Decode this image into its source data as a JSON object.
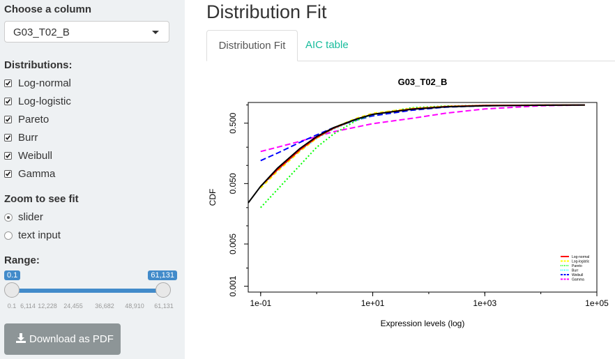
{
  "sidebar": {
    "column_label": "Choose a column",
    "column_value": "G03_T02_B",
    "distributions_label": "Distributions:",
    "distributions": [
      "Log-normal",
      "Log-logistic",
      "Pareto",
      "Burr",
      "Weibull",
      "Gamma"
    ],
    "zoom_label": "Zoom to see fit",
    "zoom_options": [
      "slider",
      "text input"
    ],
    "zoom_selected": "slider",
    "range_label": "Range:",
    "range_min_badge": "0.1",
    "range_max_badge": "61,131",
    "range_ticks": [
      "0.1",
      "6,114",
      "12,228",
      "24,455",
      "36,682",
      "48,910",
      "61,131"
    ],
    "download_label": "Download as PDF"
  },
  "main": {
    "title": "Distribution Fit",
    "tabs": [
      {
        "label": "Distribution Fit",
        "active": true
      },
      {
        "label": "AIC table",
        "active": false
      }
    ]
  },
  "colors": {
    "slider": "#428bca",
    "tab_link": "#18bc9c",
    "button": "#8d9597"
  },
  "chart_data": {
    "type": "line",
    "title": "G03_T02_B",
    "xlabel": "Expression levels (log)",
    "ylabel": "CDF",
    "x_scale": "log",
    "y_scale": "log",
    "xlim": [
      0.06,
      100000
    ],
    "ylim": [
      0.0008,
      1.1
    ],
    "x_ticks": [
      {
        "value": 0.1,
        "label": "1e-01"
      },
      {
        "value": 10,
        "label": "1e+01"
      },
      {
        "value": 1000,
        "label": "1e+03"
      },
      {
        "value": 100000,
        "label": "1e+05"
      }
    ],
    "y_ticks": [
      {
        "value": 0.001,
        "label": "0.001"
      },
      {
        "value": 0.005,
        "label": "0.005"
      },
      {
        "value": 0.05,
        "label": "0.050"
      },
      {
        "value": 0.5,
        "label": "0.500"
      }
    ],
    "legend_position": "bottom-right",
    "empirical": {
      "x": [
        0.06,
        0.1,
        0.2,
        0.5,
        1,
        2,
        5,
        10,
        50,
        200,
        1000,
        10000,
        61131
      ],
      "y": [
        0.024,
        0.045,
        0.09,
        0.19,
        0.3,
        0.42,
        0.58,
        0.7,
        0.85,
        0.93,
        0.97,
        0.99,
        1.0
      ]
    },
    "series": [
      {
        "name": "Log-normal",
        "color": "#ff0000",
        "dash": "",
        "x": [
          0.1,
          0.2,
          0.5,
          1,
          2,
          5,
          10,
          50,
          200,
          1000,
          10000,
          61131
        ],
        "y": [
          0.045,
          0.085,
          0.18,
          0.29,
          0.41,
          0.58,
          0.7,
          0.86,
          0.94,
          0.98,
          0.995,
          1.0
        ]
      },
      {
        "name": "Log-logistic",
        "color": "#ffff00",
        "dash": "5,4",
        "x": [
          0.1,
          0.2,
          0.5,
          1,
          2,
          5,
          10,
          50,
          200,
          1000,
          10000,
          61131
        ],
        "y": [
          0.042,
          0.08,
          0.17,
          0.28,
          0.42,
          0.6,
          0.73,
          0.88,
          0.95,
          0.98,
          0.995,
          1.0
        ]
      },
      {
        "name": "Pareto",
        "color": "#00ff00",
        "dash": "2,3",
        "x": [
          0.1,
          0.2,
          0.5,
          1,
          2,
          5,
          10,
          50,
          200,
          1000,
          10000,
          61131
        ],
        "y": [
          0.02,
          0.04,
          0.1,
          0.2,
          0.33,
          0.55,
          0.7,
          0.9,
          0.96,
          0.985,
          0.995,
          1.0
        ]
      },
      {
        "name": "Burr",
        "color": "#00ffff",
        "dash": "2,3",
        "x": [
          0.1,
          0.2,
          0.5,
          1,
          2,
          5,
          10,
          50,
          200,
          1000,
          10000,
          61131
        ],
        "y": [
          0.044,
          0.083,
          0.175,
          0.28,
          0.4,
          0.57,
          0.69,
          0.86,
          0.94,
          0.98,
          0.995,
          1.0
        ]
      },
      {
        "name": "Weibull",
        "color": "#0000ff",
        "dash": "8,4",
        "x": [
          0.1,
          0.2,
          0.5,
          1,
          2,
          5,
          10,
          50,
          200,
          1000,
          10000,
          61131
        ],
        "y": [
          0.12,
          0.16,
          0.24,
          0.32,
          0.42,
          0.56,
          0.66,
          0.82,
          0.92,
          0.97,
          0.995,
          1.0
        ]
      },
      {
        "name": "Gamma",
        "color": "#ff00ff",
        "dash": "8,4",
        "x": [
          0.1,
          0.2,
          0.5,
          1,
          2,
          5,
          10,
          50,
          200,
          1000,
          10000,
          61131
        ],
        "y": [
          0.17,
          0.2,
          0.25,
          0.3,
          0.36,
          0.43,
          0.49,
          0.6,
          0.73,
          0.86,
          0.97,
          1.0
        ]
      }
    ]
  }
}
